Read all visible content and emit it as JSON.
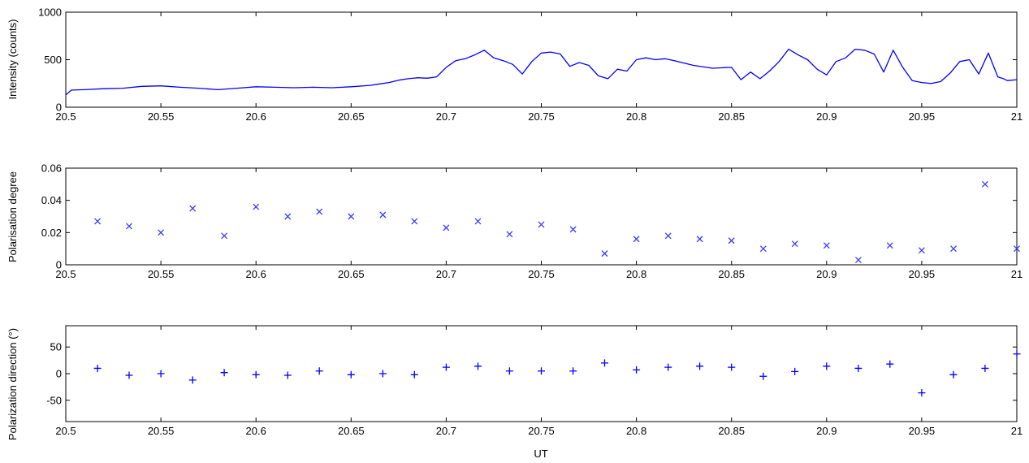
{
  "xlabel": "UT",
  "chart_data": [
    {
      "type": "line",
      "ylabel": "Intensity (counts)",
      "xlim": [
        20.5,
        21
      ],
      "ylim": [
        0,
        1000
      ],
      "xticks": [
        "20.5",
        "20.55",
        "20.6",
        "20.65",
        "20.7",
        "20.75",
        "20.8",
        "20.85",
        "20.9",
        "20.95",
        "21"
      ],
      "yticks": [
        "0",
        "500",
        "1000"
      ],
      "series": [
        {
          "color": "#0000ff",
          "x": [
            20.5,
            20.503,
            20.51,
            20.52,
            20.53,
            20.54,
            20.55,
            20.56,
            20.57,
            20.58,
            20.59,
            20.6,
            20.61,
            20.62,
            20.63,
            20.64,
            20.65,
            20.66,
            20.665,
            20.67,
            20.675,
            20.68,
            20.685,
            20.69,
            20.695,
            20.7,
            20.705,
            20.71,
            20.715,
            20.72,
            20.725,
            20.73,
            20.735,
            20.74,
            20.745,
            20.75,
            20.755,
            20.76,
            20.765,
            20.77,
            20.775,
            20.78,
            20.785,
            20.79,
            20.795,
            20.8,
            20.805,
            20.81,
            20.815,
            20.82,
            20.83,
            20.84,
            20.85,
            20.855,
            20.86,
            20.865,
            20.87,
            20.875,
            20.88,
            20.885,
            20.89,
            20.895,
            20.9,
            20.905,
            20.91,
            20.915,
            20.92,
            20.925,
            20.93,
            20.935,
            20.94,
            20.945,
            20.95,
            20.955,
            20.96,
            20.965,
            20.97,
            20.975,
            20.98,
            20.985,
            20.99,
            20.993,
            20.995,
            21.0
          ],
          "y": [
            130,
            180,
            185,
            195,
            200,
            220,
            225,
            210,
            200,
            185,
            200,
            215,
            210,
            205,
            210,
            205,
            215,
            230,
            245,
            260,
            285,
            300,
            310,
            305,
            320,
            420,
            490,
            510,
            550,
            600,
            520,
            490,
            450,
            350,
            480,
            570,
            580,
            560,
            430,
            470,
            440,
            330,
            300,
            400,
            380,
            500,
            520,
            500,
            510,
            490,
            440,
            410,
            420,
            290,
            370,
            300,
            380,
            480,
            610,
            550,
            500,
            400,
            340,
            480,
            520,
            610,
            600,
            560,
            370,
            600,
            420,
            280,
            260,
            250,
            270,
            360,
            480,
            500,
            350,
            570,
            320,
            300,
            280,
            290
          ]
        }
      ]
    },
    {
      "type": "scatter",
      "ylabel": "Polarisation degree",
      "xlim": [
        20.5,
        21
      ],
      "ylim": [
        0,
        0.06
      ],
      "xticks": [
        "20.5",
        "20.55",
        "20.6",
        "20.65",
        "20.7",
        "20.75",
        "20.8",
        "20.85",
        "20.9",
        "20.95",
        "21"
      ],
      "yticks": [
        "0",
        "0.02",
        "0.04",
        "0.06"
      ],
      "marker": "x",
      "series": [
        {
          "color": "#3a3aff",
          "x": [
            20.5167,
            20.5333,
            20.55,
            20.5667,
            20.5833,
            20.6,
            20.6167,
            20.6333,
            20.65,
            20.6667,
            20.6833,
            20.7,
            20.7167,
            20.7333,
            20.75,
            20.7667,
            20.7833,
            20.8,
            20.8167,
            20.8333,
            20.85,
            20.8667,
            20.8833,
            20.9,
            20.9167,
            20.9333,
            20.95,
            20.9667,
            20.9833,
            21.0
          ],
          "y": [
            0.027,
            0.024,
            0.02,
            0.035,
            0.018,
            0.036,
            0.03,
            0.033,
            0.03,
            0.031,
            0.027,
            0.023,
            0.027,
            0.019,
            0.025,
            0.022,
            0.007,
            0.016,
            0.018,
            0.016,
            0.015,
            0.01,
            0.013,
            0.012,
            0.003,
            0.012,
            0.009,
            0.01,
            0.05,
            0.01
          ]
        }
      ]
    },
    {
      "type": "scatter",
      "ylabel": "Polarization direction (°)",
      "xlim": [
        20.5,
        21
      ],
      "ylim": [
        -90,
        90
      ],
      "xticks": [
        "20.5",
        "20.55",
        "20.6",
        "20.65",
        "20.7",
        "20.75",
        "20.8",
        "20.85",
        "20.9",
        "20.95",
        "21"
      ],
      "yticks": [
        "-50",
        "0",
        "50"
      ],
      "marker": "+",
      "series": [
        {
          "color": "#0000ff",
          "x": [
            20.5167,
            20.5333,
            20.55,
            20.5667,
            20.5833,
            20.6,
            20.6167,
            20.6333,
            20.65,
            20.6667,
            20.6833,
            20.7,
            20.7167,
            20.7333,
            20.75,
            20.7667,
            20.7833,
            20.8,
            20.8167,
            20.8333,
            20.85,
            20.8667,
            20.8833,
            20.9,
            20.9167,
            20.9333,
            20.95,
            20.9667,
            20.9833,
            21.0
          ],
          "y": [
            10,
            -3,
            0,
            -12,
            2,
            -2,
            -3,
            5,
            -2,
            0,
            -2,
            12,
            14,
            5,
            5,
            5,
            20,
            7,
            12,
            14,
            12,
            -5,
            4,
            14,
            10,
            18,
            -36,
            -2,
            10,
            37
          ]
        }
      ]
    }
  ]
}
